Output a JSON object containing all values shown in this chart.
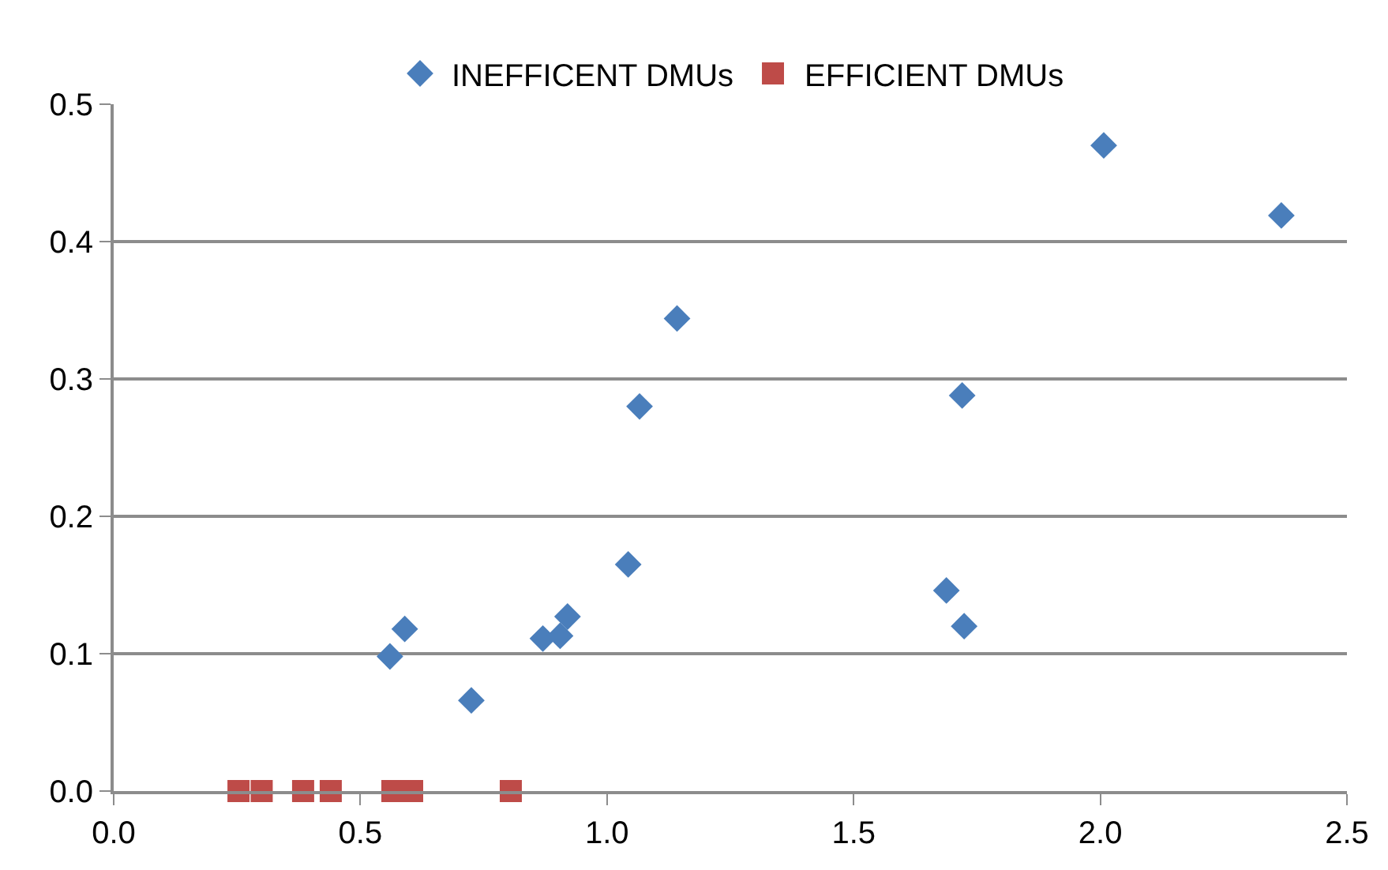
{
  "chart_data": {
    "type": "scatter",
    "series": [
      {
        "name": "INEFFICENT DMUs",
        "color": "#4a7ebb",
        "marker": "diamond",
        "x": [
          0.56,
          0.59,
          0.725,
          0.87,
          0.905,
          0.92,
          1.043,
          1.066,
          1.142,
          1.688,
          1.724,
          1.72,
          2.007,
          2.367
        ],
        "values": [
          0.098,
          0.118,
          0.066,
          0.111,
          0.113,
          0.127,
          0.165,
          0.28,
          0.344,
          0.146,
          0.12,
          0.288,
          0.47,
          0.419
        ]
      },
      {
        "name": "EFFICIENT DMUs",
        "color": "#be4b48",
        "marker": "square",
        "x": [
          0.253,
          0.3,
          0.384,
          0.44,
          0.565,
          0.605,
          0.805
        ],
        "values": [
          0,
          0,
          0,
          0,
          0,
          0,
          0
        ]
      }
    ],
    "xlim": [
      0,
      2.5
    ],
    "xticks": [
      {
        "value": 0,
        "label": "0.0"
      },
      0.5,
      {
        "value": 1,
        "label": "1.0"
      },
      1.5,
      {
        "value": 2,
        "label": "2.0"
      },
      2.5
    ],
    "ylim": [
      0,
      0.5
    ],
    "yticks": [
      {
        "value": 0,
        "label": "0.0"
      },
      0.1,
      0.2,
      0.3,
      0.4,
      0.5
    ],
    "grid": "y",
    "legend": "top"
  }
}
